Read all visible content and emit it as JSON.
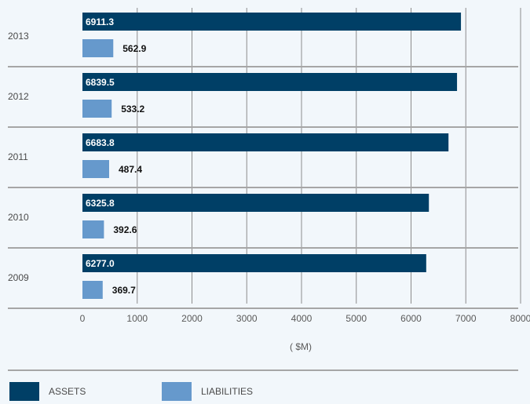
{
  "chart_data": {
    "type": "bar",
    "orientation": "horizontal",
    "categories": [
      "2013",
      "2012",
      "2011",
      "2010",
      "2009"
    ],
    "series": [
      {
        "name": "ASSETS",
        "values": [
          6911.3,
          6839.5,
          6683.8,
          6325.8,
          6277.0
        ],
        "labels": [
          "6911.3",
          "6839.5",
          "6683.8",
          "6325.8",
          "6277.0"
        ],
        "color": "#003f66"
      },
      {
        "name": "LIABILITIES",
        "values": [
          562.9,
          533.2,
          487.4,
          392.6,
          369.7
        ],
        "labels": [
          "562.9",
          "533.2",
          "487.4",
          "392.6",
          "369.7"
        ],
        "color": "#6699cc"
      }
    ],
    "xticks": [
      "0",
      "1000",
      "2000",
      "3000",
      "4000",
      "5000",
      "6000",
      "7000",
      "8000"
    ],
    "xlim": [
      0,
      8000
    ],
    "xlabel": "( $M)",
    "grid": true,
    "legend_position": "bottom-left"
  }
}
